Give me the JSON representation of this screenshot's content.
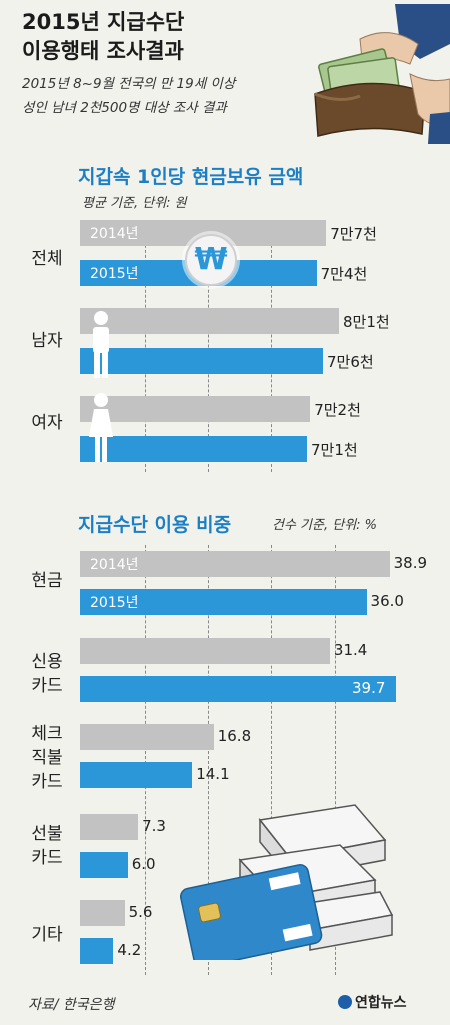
{
  "header": {
    "title_line1": "2015년 지급수단",
    "title_line2": "이용행태 조사결과",
    "subtitle_line1": "2015년 8~9월 전국의 만 19세 이상",
    "subtitle_line2": "성인 남녀 2천500명 대상 조사 결과"
  },
  "section1": {
    "title": "지갑속 1인당 현금보유 금액",
    "note": "평균 기준, 단위: 원",
    "won_symbol": "₩"
  },
  "section2": {
    "title": "지급수단 이용 비중",
    "note": "건수 기준, 단위: %"
  },
  "footer": {
    "source": "자료/ 한국은행",
    "logo": "연합뉴스"
  },
  "chart_data": [
    {
      "type": "bar",
      "title": "지갑속 1인당 현금보유 금액",
      "unit_note": "평균 기준, 단위: 원",
      "categories": [
        "전체",
        "남자",
        "여자"
      ],
      "series": [
        {
          "name": "2014년",
          "values": [
            77000,
            81000,
            72000
          ],
          "labels": [
            "7만7천",
            "8만1천",
            "7만2천"
          ],
          "color": "#c2c2c2"
        },
        {
          "name": "2015년",
          "values": [
            74000,
            76000,
            71000
          ],
          "labels": [
            "7만4천",
            "7만6천",
            "7만1천"
          ],
          "color": "#2b97d8"
        }
      ],
      "grid": true
    },
    {
      "type": "bar",
      "title": "지급수단 이용 비중",
      "unit_note": "건수 기준, 단위: %",
      "categories": [
        "현금",
        "신용\n카드",
        "체크\n직불\n카드",
        "선불\n카드",
        "기타"
      ],
      "series": [
        {
          "name": "2014년",
          "values": [
            38.9,
            31.4,
            16.8,
            7.3,
            5.6
          ],
          "labels": [
            "38.9",
            "31.4",
            "16.8",
            "7.3",
            "5.6"
          ],
          "color": "#c2c2c2"
        },
        {
          "name": "2015년",
          "values": [
            36.0,
            39.7,
            14.1,
            6.0,
            4.2
          ],
          "labels": [
            "36.0",
            "39.7",
            "14.1",
            "6.0",
            "4.2"
          ],
          "color": "#2b97d8"
        }
      ],
      "grid": true
    }
  ]
}
